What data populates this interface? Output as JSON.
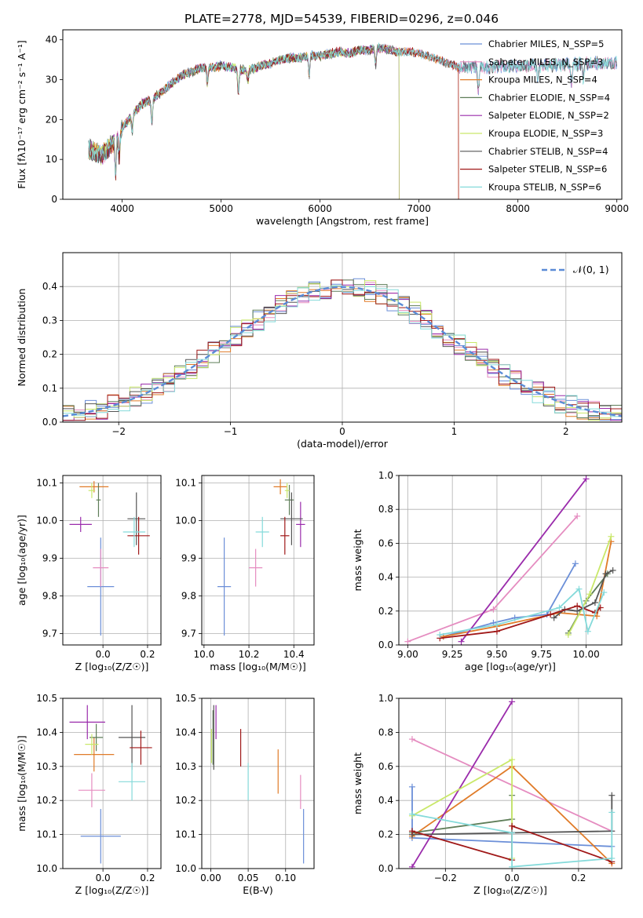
{
  "figure_title": "PLATE=2778, MJD=54539, FIBERID=0296, z=0.046",
  "colors": {
    "chabrier_miles": "#6b8fd8",
    "salpeter_miles": "#e58cc0",
    "kroupa_miles": "#e07b28",
    "chabrier_elodie": "#5e7d58",
    "salpeter_elodie": "#9a2bab",
    "kroupa_elodie": "#c9e86a",
    "chabrier_stelib": "#555555",
    "salpeter_stelib": "#a01818",
    "kroupa_stelib": "#84dada",
    "normal_curve": "#5a8bd6"
  },
  "chart_data": [
    {
      "id": "spectrum",
      "type": "line",
      "title": "PLATE=2778, MJD=54539, FIBERID=0296, z=0.046",
      "xlabel": "wavelength [Angstrom, rest frame]",
      "ylabel": "Flux [fλ10⁻¹⁷ erg cm⁻² s⁻¹ A⁻¹]",
      "xlim": [
        3400,
        9050
      ],
      "ylim": [
        0,
        42.5
      ],
      "xticks": [
        "4000",
        "5000",
        "6000",
        "7000",
        "8000",
        "9000"
      ],
      "yticks": [
        "0",
        "10",
        "20",
        "30",
        "40"
      ],
      "grid": false,
      "legend": "top-right",
      "continuum": {
        "x": [
          3650,
          3700,
          3800,
          3900,
          4000,
          4100,
          4200,
          4300,
          4400,
          4500,
          4600,
          4700,
          4800,
          4900,
          5000,
          5100,
          5200,
          5300,
          5400,
          5500,
          5600,
          5700,
          5800,
          5900,
          6000,
          6100,
          6200,
          6300,
          6400,
          6500,
          6600,
          6700,
          6800,
          6900,
          7000,
          7100,
          7200,
          7300,
          7400
        ],
        "y": [
          13,
          12,
          11,
          14,
          18,
          21,
          24,
          25,
          27,
          29,
          31,
          32,
          33,
          33,
          33.5,
          33,
          32.5,
          32.5,
          33.5,
          34,
          35,
          35.5,
          35.5,
          36,
          36,
          36.5,
          37,
          36.5,
          37.5,
          37.5,
          38,
          37.5,
          37,
          37,
          36.5,
          36,
          35,
          34,
          33
        ]
      },
      "series": [
        {
          "name": "Chabrier MILES, N_SSP=5",
          "color_key": "chabrier_miles",
          "x_end": 9000
        },
        {
          "name": "Salpeter MILES, N_SSP=3",
          "color_key": "salpeter_miles",
          "x_end": 9000
        },
        {
          "name": "Kroupa MILES, N_SSP=4",
          "color_key": "kroupa_miles",
          "x_end": 7400
        },
        {
          "name": "Chabrier ELODIE, N_SSP=4",
          "color_key": "chabrier_elodie",
          "x_end": 6800
        },
        {
          "name": "Salpeter ELODIE, N_SSP=2",
          "color_key": "salpeter_elodie",
          "x_end": 6800
        },
        {
          "name": "Kroupa ELODIE, N_SSP=3",
          "color_key": "kroupa_elodie",
          "x_end": 6800
        },
        {
          "name": "Chabrier STELIB, N_SSP=4",
          "color_key": "chabrier_stelib",
          "x_end": 9000
        },
        {
          "name": "Salpeter STELIB, N_SSP=6",
          "color_key": "salpeter_stelib",
          "x_end": 7400
        },
        {
          "name": "Kroupa STELIB, N_SSP=6",
          "color_key": "kroupa_stelib",
          "x_end": 9000
        }
      ]
    },
    {
      "id": "residuals",
      "type": "bar",
      "xlabel": "(data-model)/error",
      "ylabel": "Normed distribution",
      "xlim": [
        -2.5,
        2.5
      ],
      "ylim": [
        0,
        0.5
      ],
      "xticks": [
        "−2",
        "−1",
        "0",
        "1",
        "2"
      ],
      "yticks": [
        "0.0",
        "0.1",
        "0.2",
        "0.3",
        "0.4"
      ],
      "grid": true,
      "legend": "top-right",
      "legend_label": "𝒩(0, 1)",
      "bin_width": 0.1
    },
    {
      "id": "age_vs_Z",
      "type": "scatter",
      "xlabel": "Z [log₁₀(Z/Z☉)]",
      "ylabel": "age  [log₁₀(age/yr)]",
      "xlim": [
        -0.18,
        0.26
      ],
      "ylim": [
        9.67,
        10.12
      ],
      "xticks": [
        "0.0",
        "0.2"
      ],
      "yticks": [
        "9.7",
        "9.8",
        "9.9",
        "10.0",
        "10.1"
      ],
      "grid": true,
      "points": [
        {
          "color_key": "chabrier_miles",
          "x": -0.01,
          "y": 9.825,
          "xerr": 0.06,
          "yerr": 0.13
        },
        {
          "color_key": "salpeter_miles",
          "x": -0.01,
          "y": 9.875,
          "xerr": 0.035,
          "yerr": 0.05
        },
        {
          "color_key": "kroupa_miles",
          "x": -0.04,
          "y": 10.09,
          "xerr": 0.065,
          "yerr": 0.015
        },
        {
          "color_key": "chabrier_elodie",
          "x": -0.02,
          "y": 10.055,
          "xerr": 0.01,
          "yerr": 0.045
        },
        {
          "color_key": "salpeter_elodie",
          "x": -0.1,
          "y": 9.99,
          "xerr": 0.05,
          "yerr": 0.02
        },
        {
          "color_key": "kroupa_elodie",
          "x": -0.05,
          "y": 10.08,
          "xerr": 0.015,
          "yerr": 0.02
        },
        {
          "color_key": "chabrier_stelib",
          "x": 0.15,
          "y": 10.005,
          "xerr": 0.04,
          "yerr": 0.07
        },
        {
          "color_key": "salpeter_stelib",
          "x": 0.16,
          "y": 9.96,
          "xerr": 0.05,
          "yerr": 0.05
        },
        {
          "color_key": "kroupa_stelib",
          "x": 0.14,
          "y": 9.97,
          "xerr": 0.05,
          "yerr": 0.04
        }
      ]
    },
    {
      "id": "age_vs_mass",
      "type": "scatter",
      "xlabel": "mass [log₁₀(M/M☉)]",
      "ylabel": "",
      "xlim": [
        9.99,
        10.49
      ],
      "ylim": [
        9.67,
        10.12
      ],
      "xticks": [
        "10.0",
        "10.2",
        "10.4"
      ],
      "yticks": [
        "9.7",
        "9.8",
        "9.9",
        "10.0",
        "10.1"
      ],
      "grid": true,
      "points": [
        {
          "color_key": "chabrier_miles",
          "x": 10.09,
          "y": 9.825,
          "xerr": 0.03,
          "yerr": 0.13
        },
        {
          "color_key": "salpeter_miles",
          "x": 10.23,
          "y": 9.875,
          "xerr": 0.03,
          "yerr": 0.05
        },
        {
          "color_key": "kroupa_miles",
          "x": 10.34,
          "y": 10.09,
          "xerr": 0.03,
          "yerr": 0.02
        },
        {
          "color_key": "chabrier_elodie",
          "x": 10.38,
          "y": 10.055,
          "xerr": 0.02,
          "yerr": 0.04
        },
        {
          "color_key": "salpeter_elodie",
          "x": 10.43,
          "y": 9.99,
          "xerr": 0.02,
          "yerr": 0.06
        },
        {
          "color_key": "kroupa_elodie",
          "x": 10.37,
          "y": 10.08,
          "xerr": 0.01,
          "yerr": 0.02
        },
        {
          "color_key": "chabrier_stelib",
          "x": 10.39,
          "y": 10.005,
          "xerr": 0.05,
          "yerr": 0.07
        },
        {
          "color_key": "salpeter_stelib",
          "x": 10.36,
          "y": 9.96,
          "xerr": 0.02,
          "yerr": 0.05
        },
        {
          "color_key": "kroupa_stelib",
          "x": 10.26,
          "y": 9.97,
          "xerr": 0.03,
          "yerr": 0.04
        }
      ]
    },
    {
      "id": "weight_vs_age",
      "type": "line",
      "xlabel": "age  [log₁₀(age/yr)]",
      "ylabel": "mass weight",
      "xlim": [
        8.95,
        10.2
      ],
      "ylim": [
        0,
        1.0
      ],
      "xticks": [
        "9.00",
        "9.25",
        "9.50",
        "9.75",
        "10.00"
      ],
      "yticks": [
        "0.0",
        "0.2",
        "0.4",
        "0.6",
        "0.8",
        "1.0"
      ],
      "grid": true,
      "series": [
        {
          "color_key": "chabrier_miles",
          "points": [
            [
              9.2,
              0.05
            ],
            [
              9.48,
              0.13
            ],
            [
              9.6,
              0.16
            ],
            [
              9.78,
              0.18
            ],
            [
              9.94,
              0.48
            ]
          ]
        },
        {
          "color_key": "salpeter_miles",
          "points": [
            [
              9.0,
              0.02
            ],
            [
              9.48,
              0.21
            ],
            [
              9.95,
              0.76
            ]
          ]
        },
        {
          "color_key": "kroupa_miles",
          "points": [
            [
              9.2,
              0.05
            ],
            [
              9.5,
              0.11
            ],
            [
              9.85,
              0.19
            ],
            [
              10.06,
              0.17
            ],
            [
              10.14,
              0.61
            ]
          ]
        },
        {
          "color_key": "chabrier_elodie",
          "points": [
            [
              9.9,
              0.07
            ],
            [
              10.0,
              0.26
            ],
            [
              10.12,
              0.42
            ]
          ]
        },
        {
          "color_key": "salpeter_elodie",
          "points": [
            [
              9.3,
              0.02
            ],
            [
              10.0,
              0.98
            ]
          ]
        },
        {
          "color_key": "kroupa_elodie",
          "points": [
            [
              9.9,
              0.06
            ],
            [
              10.02,
              0.3
            ],
            [
              10.14,
              0.64
            ]
          ]
        },
        {
          "color_key": "chabrier_stelib",
          "points": [
            [
              9.82,
              0.16
            ],
            [
              9.88,
              0.21
            ],
            [
              9.95,
              0.2
            ],
            [
              10.05,
              0.25
            ],
            [
              10.11,
              0.42
            ],
            [
              10.15,
              0.44
            ]
          ]
        },
        {
          "color_key": "salpeter_stelib",
          "points": [
            [
              9.18,
              0.04
            ],
            [
              9.5,
              0.08
            ],
            [
              9.8,
              0.18
            ],
            [
              9.95,
              0.23
            ],
            [
              10.05,
              0.19
            ],
            [
              10.08,
              0.22
            ]
          ]
        },
        {
          "color_key": "kroupa_stelib",
          "points": [
            [
              9.18,
              0.06
            ],
            [
              9.5,
              0.12
            ],
            [
              9.85,
              0.22
            ],
            [
              9.96,
              0.33
            ],
            [
              10.01,
              0.08
            ],
            [
              10.1,
              0.31
            ]
          ]
        }
      ]
    },
    {
      "id": "mass_vs_Z",
      "type": "scatter",
      "xlabel": "Z [log₁₀(Z/Z☉)]",
      "ylabel": "mass [log₁₀(M/M☉)]",
      "xlim": [
        -0.18,
        0.26
      ],
      "ylim": [
        10.0,
        10.5
      ],
      "xticks": [
        "0.0",
        "0.2"
      ],
      "yticks": [
        "10.0",
        "10.1",
        "10.2",
        "10.3",
        "10.4",
        "10.5"
      ],
      "grid": true,
      "points": [
        {
          "color_key": "chabrier_miles",
          "x": -0.01,
          "y": 10.095,
          "xerr": 0.09,
          "yerr": 0.08
        },
        {
          "color_key": "salpeter_miles",
          "x": -0.05,
          "y": 10.23,
          "xerr": 0.06,
          "yerr": 0.05
        },
        {
          "color_key": "kroupa_miles",
          "x": -0.04,
          "y": 10.335,
          "xerr": 0.09,
          "yerr": 0.05
        },
        {
          "color_key": "chabrier_elodie",
          "x": -0.03,
          "y": 10.385,
          "xerr": 0.03,
          "yerr": 0.04
        },
        {
          "color_key": "salpeter_elodie",
          "x": -0.07,
          "y": 10.43,
          "xerr": 0.08,
          "yerr": 0.05
        },
        {
          "color_key": "kroupa_elodie",
          "x": -0.05,
          "y": 10.365,
          "xerr": 0.03,
          "yerr": 0.03
        },
        {
          "color_key": "chabrier_stelib",
          "x": 0.13,
          "y": 10.385,
          "xerr": 0.06,
          "yerr": 0.095
        },
        {
          "color_key": "salpeter_stelib",
          "x": 0.17,
          "y": 10.355,
          "xerr": 0.05,
          "yerr": 0.05
        },
        {
          "color_key": "kroupa_stelib",
          "x": 0.13,
          "y": 10.255,
          "xerr": 0.06,
          "yerr": 0.055
        }
      ]
    },
    {
      "id": "mass_vs_ebv",
      "type": "scatter",
      "xlabel": "E(B-V)",
      "ylabel": "",
      "xlim": [
        -0.012,
        0.138
      ],
      "ylim": [
        10.0,
        10.5
      ],
      "xticks": [
        "0.00",
        "0.05",
        "0.10"
      ],
      "yticks": [
        "10.0",
        "10.1",
        "10.2",
        "10.3",
        "10.4",
        "10.5"
      ],
      "grid": true,
      "points": [
        {
          "color_key": "chabrier_miles",
          "x": 0.124,
          "y": 10.095,
          "xerr": 0.0,
          "yerr": 0.08
        },
        {
          "color_key": "salpeter_miles",
          "x": 0.12,
          "y": 10.225,
          "xerr": 0.0,
          "yerr": 0.05
        },
        {
          "color_key": "kroupa_miles",
          "x": 0.09,
          "y": 10.285,
          "xerr": 0.0,
          "yerr": 0.065
        },
        {
          "color_key": "chabrier_elodie",
          "x": 0.003,
          "y": 10.385,
          "xerr": 0.0,
          "yerr": 0.08
        },
        {
          "color_key": "salpeter_elodie",
          "x": 0.007,
          "y": 10.43,
          "xerr": 0.0,
          "yerr": 0.05
        },
        {
          "color_key": "kroupa_elodie",
          "x": 0.001,
          "y": 10.36,
          "xerr": 0.0,
          "yerr": 0.05
        },
        {
          "color_key": "chabrier_stelib",
          "x": 0.004,
          "y": 10.385,
          "xerr": 0.0,
          "yerr": 0.095
        },
        {
          "color_key": "salpeter_stelib",
          "x": 0.04,
          "y": 10.355,
          "xerr": 0.0,
          "yerr": 0.055
        },
        {
          "color_key": "kroupa_stelib",
          "x": 0.05,
          "y": 10.255,
          "xerr": 0.0,
          "yerr": 0.055
        }
      ]
    },
    {
      "id": "weight_vs_Z",
      "type": "line",
      "xlabel": "Z [log₁₀(Z/Z☉)]",
      "ylabel": "mass weight",
      "xlim": [
        -0.34,
        0.33
      ],
      "ylim": [
        0,
        1.0
      ],
      "xticks": [
        "−0.2",
        "0.0",
        "0.2"
      ],
      "yticks": [
        "0.0",
        "0.2",
        "0.4",
        "0.6",
        "0.8",
        "1.0"
      ],
      "grid": true,
      "series": [
        {
          "color_key": "chabrier_miles",
          "points": [
            [
              -0.3,
              0.48
            ],
            [
              -0.3,
              0.18
            ],
            [
              0.3,
              0.13
            ]
          ]
        },
        {
          "color_key": "salpeter_miles",
          "points": [
            [
              -0.3,
              0.76
            ],
            [
              0.3,
              0.22
            ]
          ]
        },
        {
          "color_key": "kroupa_miles",
          "points": [
            [
              -0.3,
              0.19
            ],
            [
              0.0,
              0.6
            ],
            [
              0.3,
              0.03
            ]
          ]
        },
        {
          "color_key": "chabrier_elodie",
          "points": [
            [
              -0.3,
              0.21
            ],
            [
              0.0,
              0.29
            ],
            [
              0.0,
              0.43
            ]
          ]
        },
        {
          "color_key": "salpeter_elodie",
          "points": [
            [
              -0.3,
              0.01
            ],
            [
              0.0,
              0.98
            ]
          ]
        },
        {
          "color_key": "kroupa_elodie",
          "points": [
            [
              -0.3,
              0.31
            ],
            [
              0.0,
              0.64
            ],
            [
              0.0,
              0.06
            ]
          ]
        },
        {
          "color_key": "chabrier_stelib",
          "points": [
            [
              -0.3,
              0.2
            ],
            [
              0.3,
              0.22
            ],
            [
              0.3,
              0.43
            ]
          ]
        },
        {
          "color_key": "salpeter_stelib",
          "points": [
            [
              -0.3,
              0.22
            ],
            [
              0.0,
              0.05
            ],
            [
              0.0,
              0.25
            ],
            [
              0.3,
              0.04
            ]
          ]
        },
        {
          "color_key": "kroupa_stelib",
          "points": [
            [
              -0.3,
              0.32
            ],
            [
              0.0,
              0.21
            ],
            [
              0.0,
              0.01
            ],
            [
              0.3,
              0.06
            ],
            [
              0.3,
              0.33
            ]
          ]
        }
      ]
    }
  ]
}
